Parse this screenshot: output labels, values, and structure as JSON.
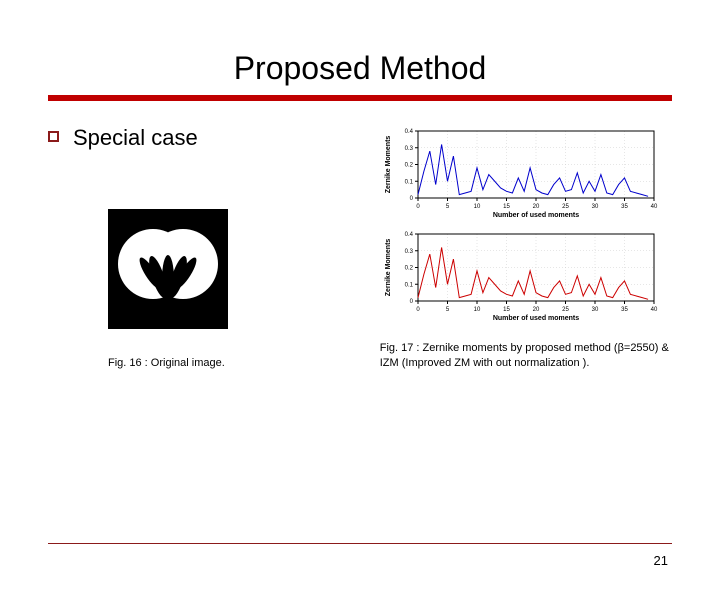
{
  "title": "Proposed Method",
  "bullet_text": "Special case",
  "fig16": {
    "caption": "Fig. 16 : Original image.",
    "bg": "#000000",
    "fg": "#ffffff"
  },
  "fig17": {
    "caption": "Fig. 17 : Zernike moments by proposed method (β=2550) & IZM (Improved ZM with out normalization ).",
    "top_chart": {
      "type": "line",
      "xlabel": "Number of used moments",
      "ylabel": "Zernike Moments",
      "xlim": [
        0,
        40
      ],
      "xtick_step": 5,
      "ylim": [
        0,
        0.4
      ],
      "ytick_step": 0.1,
      "line_color": "#0000cc",
      "grid_color": "#cccccc",
      "axis_color": "#000000",
      "label_fontsize": 7,
      "tick_fontsize": 6,
      "data": [
        [
          0,
          0.02
        ],
        [
          1,
          0.16
        ],
        [
          2,
          0.28
        ],
        [
          3,
          0.08
        ],
        [
          4,
          0.32
        ],
        [
          5,
          0.1
        ],
        [
          6,
          0.25
        ],
        [
          7,
          0.02
        ],
        [
          8,
          0.03
        ],
        [
          9,
          0.04
        ],
        [
          10,
          0.18
        ],
        [
          11,
          0.05
        ],
        [
          12,
          0.14
        ],
        [
          13,
          0.1
        ],
        [
          14,
          0.06
        ],
        [
          15,
          0.04
        ],
        [
          16,
          0.03
        ],
        [
          17,
          0.12
        ],
        [
          18,
          0.04
        ],
        [
          19,
          0.18
        ],
        [
          20,
          0.05
        ],
        [
          21,
          0.03
        ],
        [
          22,
          0.02
        ],
        [
          23,
          0.08
        ],
        [
          24,
          0.12
        ],
        [
          25,
          0.04
        ],
        [
          26,
          0.05
        ],
        [
          27,
          0.15
        ],
        [
          28,
          0.03
        ],
        [
          29,
          0.1
        ],
        [
          30,
          0.04
        ],
        [
          31,
          0.14
        ],
        [
          32,
          0.03
        ],
        [
          33,
          0.02
        ],
        [
          34,
          0.08
        ],
        [
          35,
          0.12
        ],
        [
          36,
          0.04
        ],
        [
          37,
          0.03
        ],
        [
          38,
          0.02
        ],
        [
          39,
          0.01
        ]
      ]
    },
    "bottom_chart": {
      "type": "line",
      "xlabel": "Number of used moments",
      "ylabel": "Zernike Moments",
      "xlim": [
        0,
        40
      ],
      "xtick_step": 5,
      "ylim": [
        0,
        0.4
      ],
      "ytick_step": 0.1,
      "line_color": "#cc0000",
      "grid_color": "#cccccc",
      "axis_color": "#000000",
      "label_fontsize": 7,
      "tick_fontsize": 6,
      "data": [
        [
          0,
          0.02
        ],
        [
          1,
          0.16
        ],
        [
          2,
          0.28
        ],
        [
          3,
          0.08
        ],
        [
          4,
          0.32
        ],
        [
          5,
          0.1
        ],
        [
          6,
          0.25
        ],
        [
          7,
          0.02
        ],
        [
          8,
          0.03
        ],
        [
          9,
          0.04
        ],
        [
          10,
          0.18
        ],
        [
          11,
          0.05
        ],
        [
          12,
          0.14
        ],
        [
          13,
          0.1
        ],
        [
          14,
          0.06
        ],
        [
          15,
          0.04
        ],
        [
          16,
          0.03
        ],
        [
          17,
          0.12
        ],
        [
          18,
          0.04
        ],
        [
          19,
          0.18
        ],
        [
          20,
          0.05
        ],
        [
          21,
          0.03
        ],
        [
          22,
          0.02
        ],
        [
          23,
          0.08
        ],
        [
          24,
          0.12
        ],
        [
          25,
          0.04
        ],
        [
          26,
          0.05
        ],
        [
          27,
          0.15
        ],
        [
          28,
          0.03
        ],
        [
          29,
          0.1
        ],
        [
          30,
          0.04
        ],
        [
          31,
          0.14
        ],
        [
          32,
          0.03
        ],
        [
          33,
          0.02
        ],
        [
          34,
          0.08
        ],
        [
          35,
          0.12
        ],
        [
          36,
          0.04
        ],
        [
          37,
          0.03
        ],
        [
          38,
          0.02
        ],
        [
          39,
          0.01
        ]
      ]
    }
  },
  "page_number": "21",
  "accent_red": "#c00000",
  "rule_maroon": "#8b1a1a"
}
